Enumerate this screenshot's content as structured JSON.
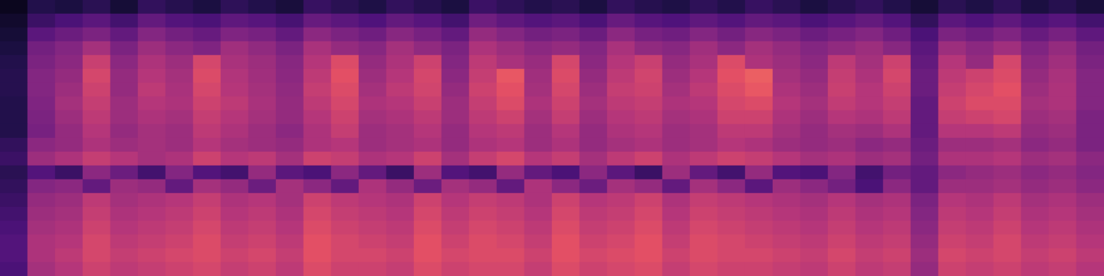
{
  "chart_data": {
    "type": "heatmap",
    "tick_labels": false,
    "color_range": [
      0,
      100
    ],
    "cells": [
      [
        5,
        14,
        12,
        16,
        10,
        18,
        15,
        12,
        17,
        14,
        11,
        19,
        16,
        13,
        18,
        15,
        12,
        20,
        17,
        14,
        16,
        12,
        18,
        15,
        13,
        17,
        14,
        19,
        16,
        12,
        15,
        18,
        14,
        10,
        16,
        13,
        17,
        12,
        15,
        11
      ],
      [
        8,
        20,
        24,
        28,
        22,
        30,
        26,
        24,
        29,
        27,
        23,
        31,
        28,
        25,
        30,
        27,
        22,
        33,
        29,
        26,
        28,
        24,
        31,
        27,
        25,
        29,
        26,
        30,
        28,
        24,
        27,
        30,
        26,
        18,
        28,
        25,
        29,
        24,
        27,
        22
      ],
      [
        10,
        28,
        32,
        36,
        30,
        38,
        34,
        31,
        37,
        35,
        30,
        40,
        36,
        33,
        39,
        35,
        30,
        42,
        38,
        34,
        36,
        32,
        40,
        35,
        33,
        38,
        34,
        39,
        36,
        32,
        35,
        38,
        33,
        24,
        36,
        33,
        37,
        31,
        35,
        29
      ],
      [
        12,
        34,
        38,
        46,
        36,
        44,
        40,
        37,
        45,
        41,
        36,
        47,
        42,
        39,
        46,
        41,
        36,
        48,
        44,
        40,
        42,
        38,
        47,
        41,
        39,
        45,
        40,
        46,
        42,
        38,
        41,
        44,
        39,
        28,
        44,
        40,
        45,
        37,
        42,
        34
      ],
      [
        14,
        36,
        40,
        55,
        40,
        48,
        44,
        58,
        47,
        44,
        39,
        50,
        60,
        42,
        48,
        56,
        38,
        52,
        47,
        43,
        58,
        40,
        50,
        55,
        42,
        47,
        60,
        48,
        44,
        40,
        52,
        46,
        56,
        30,
        50,
        42,
        58,
        40,
        45,
        36
      ],
      [
        15,
        38,
        42,
        58,
        42,
        50,
        46,
        60,
        49,
        45,
        40,
        52,
        62,
        44,
        50,
        58,
        40,
        54,
        64,
        45,
        60,
        42,
        52,
        57,
        44,
        50,
        62,
        66,
        46,
        42,
        54,
        48,
        58,
        32,
        52,
        56,
        60,
        42,
        47,
        38
      ],
      [
        15,
        38,
        44,
        56,
        42,
        52,
        47,
        58,
        50,
        46,
        41,
        54,
        60,
        46,
        52,
        57,
        42,
        56,
        62,
        46,
        58,
        44,
        54,
        56,
        46,
        52,
        60,
        64,
        48,
        44,
        55,
        50,
        56,
        32,
        54,
        58,
        62,
        44,
        48,
        38
      ],
      [
        14,
        37,
        46,
        54,
        44,
        50,
        48,
        56,
        52,
        47,
        42,
        52,
        58,
        48,
        50,
        55,
        44,
        54,
        60,
        48,
        56,
        46,
        52,
        54,
        48,
        50,
        58,
        60,
        50,
        46,
        53,
        50,
        54,
        30,
        56,
        60,
        60,
        46,
        48,
        38
      ],
      [
        14,
        36,
        44,
        52,
        44,
        48,
        46,
        54,
        50,
        46,
        42,
        50,
        56,
        46,
        48,
        52,
        44,
        52,
        56,
        46,
        54,
        44,
        50,
        52,
        46,
        48,
        56,
        56,
        48,
        44,
        50,
        48,
        52,
        30,
        54,
        56,
        58,
        44,
        46,
        36
      ],
      [
        14,
        35,
        42,
        50,
        42,
        46,
        44,
        52,
        48,
        44,
        40,
        48,
        54,
        44,
        46,
        50,
        42,
        50,
        52,
        44,
        50,
        42,
        48,
        50,
        44,
        46,
        52,
        52,
        46,
        42,
        46,
        44,
        48,
        30,
        50,
        50,
        52,
        42,
        44,
        36
      ],
      [
        18,
        40,
        42,
        48,
        44,
        46,
        44,
        50,
        46,
        44,
        42,
        48,
        50,
        44,
        46,
        48,
        42,
        48,
        50,
        44,
        48,
        42,
        46,
        48,
        44,
        46,
        50,
        48,
        44,
        42,
        44,
        40,
        42,
        32,
        44,
        44,
        46,
        40,
        42,
        36
      ],
      [
        20,
        44,
        48,
        54,
        50,
        46,
        48,
        56,
        50,
        52,
        46,
        56,
        54,
        48,
        50,
        56,
        46,
        54,
        58,
        50,
        54,
        46,
        52,
        56,
        48,
        52,
        56,
        54,
        50,
        46,
        48,
        44,
        46,
        34,
        48,
        48,
        50,
        44,
        46,
        40
      ],
      [
        16,
        26,
        20,
        40,
        32,
        22,
        38,
        26,
        22,
        42,
        28,
        24,
        40,
        30,
        20,
        44,
        26,
        22,
        42,
        30,
        24,
        40,
        28,
        20,
        44,
        30,
        22,
        42,
        26,
        24,
        38,
        22,
        34,
        30,
        40,
        42,
        44,
        40,
        42,
        38
      ],
      [
        18,
        38,
        40,
        30,
        44,
        42,
        30,
        46,
        42,
        32,
        46,
        40,
        30,
        48,
        42,
        32,
        46,
        42,
        30,
        48,
        40,
        32,
        46,
        42,
        30,
        46,
        40,
        28,
        44,
        40,
        34,
        24,
        40,
        30,
        44,
        44,
        46,
        42,
        44,
        40
      ],
      [
        20,
        42,
        44,
        52,
        46,
        48,
        50,
        54,
        48,
        50,
        46,
        56,
        52,
        50,
        48,
        56,
        50,
        54,
        52,
        48,
        56,
        50,
        52,
        56,
        48,
        54,
        52,
        50,
        48,
        46,
        50,
        46,
        48,
        36,
        50,
        48,
        52,
        46,
        48,
        44
      ],
      [
        22,
        44,
        46,
        54,
        48,
        50,
        52,
        56,
        50,
        52,
        48,
        58,
        54,
        52,
        50,
        58,
        52,
        56,
        54,
        50,
        58,
        52,
        54,
        58,
        50,
        56,
        54,
        52,
        50,
        48,
        52,
        48,
        50,
        38,
        52,
        50,
        54,
        48,
        50,
        46
      ],
      [
        24,
        46,
        48,
        56,
        50,
        52,
        54,
        58,
        52,
        54,
        50,
        60,
        56,
        54,
        52,
        60,
        54,
        58,
        56,
        52,
        60,
        54,
        56,
        60,
        52,
        58,
        56,
        54,
        52,
        50,
        54,
        50,
        52,
        40,
        54,
        52,
        56,
        50,
        52,
        48
      ],
      [
        26,
        48,
        50,
        58,
        52,
        54,
        56,
        60,
        54,
        56,
        52,
        62,
        58,
        56,
        54,
        62,
        56,
        60,
        58,
        54,
        62,
        56,
        58,
        62,
        54,
        60,
        58,
        56,
        54,
        52,
        56,
        52,
        54,
        42,
        56,
        54,
        58,
        52,
        54,
        50
      ],
      [
        26,
        48,
        52,
        58,
        54,
        56,
        58,
        60,
        56,
        58,
        54,
        62,
        58,
        58,
        56,
        62,
        58,
        60,
        60,
        56,
        62,
        58,
        60,
        62,
        56,
        60,
        58,
        58,
        56,
        54,
        58,
        54,
        56,
        44,
        58,
        56,
        58,
        54,
        56,
        52
      ],
      [
        24,
        46,
        50,
        56,
        52,
        54,
        56,
        58,
        54,
        56,
        52,
        60,
        56,
        56,
        54,
        60,
        56,
        58,
        58,
        54,
        60,
        56,
        58,
        60,
        54,
        58,
        56,
        56,
        54,
        52,
        56,
        52,
        54,
        42,
        56,
        54,
        56,
        52,
        54,
        50
      ]
    ]
  }
}
